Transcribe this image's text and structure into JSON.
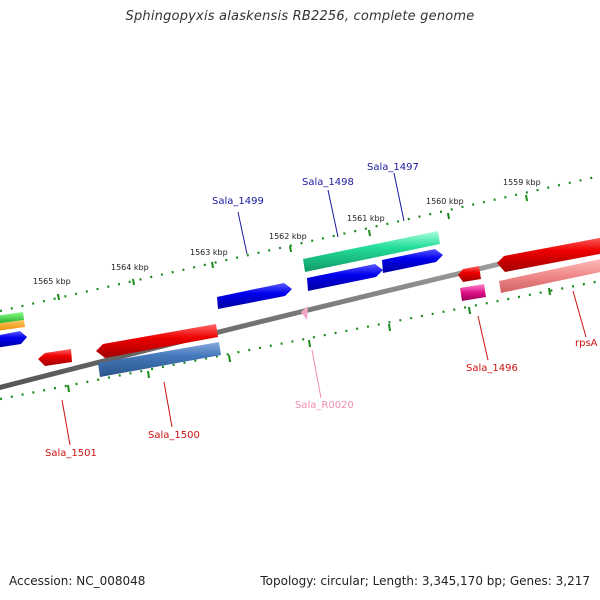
{
  "title": "Sphingopyxis alaskensis RB2256, complete genome",
  "footer": {
    "accession": "Accession: NC_008048",
    "topology": "Topology: circular; Length: 3,345,170 bp; Genes: 3,217"
  },
  "kbp_labels": [
    "1565 kbp",
    "1564 kbp",
    "1563 kbp",
    "1562 kbp",
    "1561 kbp",
    "1560 kbp",
    "1559 kbp"
  ],
  "genes": [
    {
      "name": "Sala_1499",
      "color": "#1a1aa0"
    },
    {
      "name": "Sala_1498",
      "color": "#1a1aa0"
    },
    {
      "name": "Sala_1497",
      "color": "#1a1aa0"
    },
    {
      "name": "Sala_1501",
      "color": "#cc1111"
    },
    {
      "name": "Sala_1500",
      "color": "#cc1111"
    },
    {
      "name": "Sala_R0020",
      "color": "#f08cb4"
    },
    {
      "name": "Sala_1496",
      "color": "#cc1111"
    },
    {
      "name": "rpsA",
      "color": "#cc1111"
    }
  ],
  "colors": {
    "cds_forward": "#0000ee",
    "cds_reverse": "#ee0000",
    "rrna": "#22ddaa",
    "trna": "#dd1188",
    "misc": "#4477bb",
    "pink_feature": "#f4a6c8",
    "ruler": "#1a8a1a",
    "backbone": "#888888"
  }
}
